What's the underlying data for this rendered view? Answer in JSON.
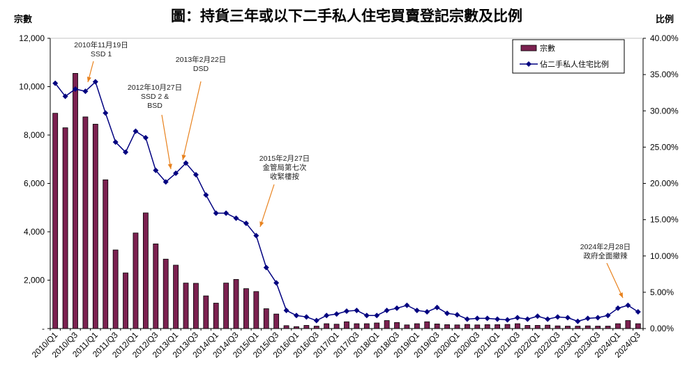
{
  "chart_data": {
    "type": "bar+line",
    "title": "圖：持貨三年或以下二手私人住宅買賣登記宗數及比例",
    "ylabel_left": "宗數",
    "ylabel_right": "比例",
    "ylim_left": [
      0,
      12000
    ],
    "ylim_right": [
      0,
      40
    ],
    "left_ticks": [
      "-",
      "2,000",
      "4,000",
      "6,000",
      "8,000",
      "10,000",
      "12,000"
    ],
    "right_ticks": [
      "0.00%",
      "5.00%",
      "10.00%",
      "15.00%",
      "20.00%",
      "25.00%",
      "30.00%",
      "35.00%",
      "40.00%"
    ],
    "categories": [
      "2010/Q1",
      "2010/Q2",
      "2010/Q3",
      "2010/Q4",
      "2011/Q1",
      "2011/Q2",
      "2011/Q3",
      "2011/Q4",
      "2012/Q1",
      "2012/Q2",
      "2012/Q3",
      "2012/Q4",
      "2013/Q1",
      "2013/Q2",
      "2013/Q3",
      "2013/Q4",
      "2014/Q1",
      "2014/Q2",
      "2014/Q3",
      "2014/Q4",
      "2015/Q1",
      "2015/Q2",
      "2015/Q3",
      "2015/Q4",
      "2016/Q1",
      "2016/Q2",
      "2016/Q3",
      "2016/Q4",
      "2017/Q1",
      "2017/Q2",
      "2017/Q3",
      "2017/Q4",
      "2018/Q1",
      "2018/Q2",
      "2018/Q3",
      "2018/Q4",
      "2019/Q1",
      "2019/Q2",
      "2019/Q3",
      "2019/Q4",
      "2020/Q1",
      "2020/Q2",
      "2020/Q3",
      "2020/Q4",
      "2021/Q1",
      "2021/Q2",
      "2021/Q3",
      "2021/Q4",
      "2022/Q1",
      "2022/Q2",
      "2022/Q3",
      "2022/Q4",
      "2023/Q1",
      "2023/Q2",
      "2023/Q3",
      "2023/Q4",
      "2024/Q1",
      "2024/Q2",
      "2024/Q3"
    ],
    "series": [
      {
        "name": "宗數",
        "type": "bar",
        "axis": "left",
        "color": "#7B2150",
        "values": [
          8900,
          8300,
          10550,
          8750,
          8450,
          6150,
          3250,
          2300,
          3950,
          4780,
          3500,
          2870,
          2620,
          1880,
          1870,
          1350,
          1050,
          1880,
          2030,
          1650,
          1530,
          820,
          600,
          120,
          80,
          130,
          100,
          200,
          180,
          280,
          200,
          200,
          230,
          330,
          250,
          150,
          200,
          280,
          190,
          160,
          150,
          170,
          150,
          160,
          160,
          170,
          200,
          130,
          130,
          140,
          110,
          100,
          100,
          110,
          100,
          100,
          200,
          330,
          200
        ]
      },
      {
        "name": "佔二手私人住宅比例",
        "type": "line",
        "axis": "right",
        "color": "#000080",
        "unit": "%",
        "values": [
          33.8,
          32.0,
          33.0,
          32.7,
          34.0,
          29.7,
          25.7,
          24.3,
          27.2,
          26.3,
          21.8,
          20.2,
          21.4,
          22.8,
          21.2,
          18.4,
          15.9,
          15.9,
          15.2,
          14.5,
          12.8,
          8.4,
          6.3,
          2.5,
          1.8,
          1.6,
          1.1,
          1.8,
          2.0,
          2.4,
          2.5,
          1.8,
          1.8,
          2.5,
          2.8,
          3.2,
          2.5,
          2.3,
          2.9,
          2.1,
          1.9,
          1.3,
          1.4,
          1.4,
          1.3,
          1.2,
          1.5,
          1.3,
          1.7,
          1.3,
          1.6,
          1.5,
          1.0,
          1.4,
          1.5,
          1.8,
          2.8,
          3.2,
          2.3
        ]
      }
    ],
    "annotations": [
      {
        "lines": [
          "2010年11月19日",
          "SSD 1"
        ],
        "category": "2010/Q4"
      },
      {
        "lines": [
          "2012年10月27日",
          "SSD 2 &",
          "BSD"
        ],
        "category": "2012/Q4"
      },
      {
        "lines": [
          "2013年2月22日",
          "DSD"
        ],
        "category": "2013/Q1"
      },
      {
        "lines": [
          "2015年2月27日",
          "金管局第七次",
          "收緊樓按"
        ],
        "category": "2015/Q1"
      },
      {
        "lines": [
          "2024年2月28日",
          "政府全面撤辣"
        ],
        "category": "2024/Q1"
      }
    ],
    "annotation_color": "#E8821E",
    "legend_position": "top-right",
    "grid": false
  }
}
